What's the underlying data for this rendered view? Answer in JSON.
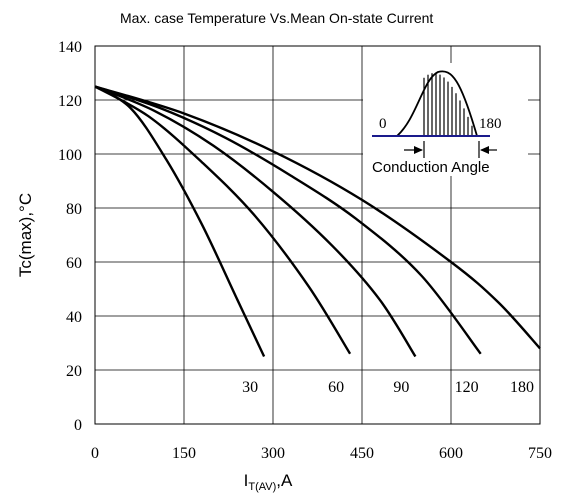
{
  "chart_data": {
    "type": "line",
    "title": "Max. case Temperature Vs.Mean On-state Current",
    "xlabel_main": "I",
    "xlabel_sub": "T(AV)",
    "xlabel_tail": ",A",
    "ylabel": "Tc(max),°C",
    "xlim": [
      0,
      750
    ],
    "ylim": [
      0,
      140
    ],
    "x_ticks": [
      "0",
      "150",
      "300",
      "450",
      "600",
      "750"
    ],
    "y_ticks": [
      "0",
      "20",
      "40",
      "60",
      "80",
      "100",
      "120",
      "140"
    ],
    "grid": true,
    "series": [
      {
        "name": "30",
        "x": [
          0,
          60,
          120,
          180,
          240,
          285
        ],
        "y": [
          125,
          117,
          98,
          74,
          46,
          25
        ]
      },
      {
        "name": "60",
        "x": [
          0,
          90,
          180,
          270,
          360,
          430
        ],
        "y": [
          125,
          114,
          97,
          77,
          51,
          26
        ]
      },
      {
        "name": "90",
        "x": [
          0,
          100,
          200,
          300,
          400,
          480,
          540
        ],
        "y": [
          125,
          116,
          103,
          86,
          66,
          46,
          25
        ]
      },
      {
        "name": "120",
        "x": [
          0,
          110,
          220,
          330,
          440,
          550,
          650
        ],
        "y": [
          125,
          117,
          106,
          92,
          76,
          55,
          26
        ]
      },
      {
        "name": "180",
        "x": [
          0,
          150,
          300,
          450,
          600,
          680,
          750
        ],
        "y": [
          125,
          115,
          101,
          83,
          60,
          45,
          28
        ]
      }
    ],
    "inset": {
      "label_start": "0",
      "label_end": "180",
      "caption": "Conduction Angle"
    }
  }
}
